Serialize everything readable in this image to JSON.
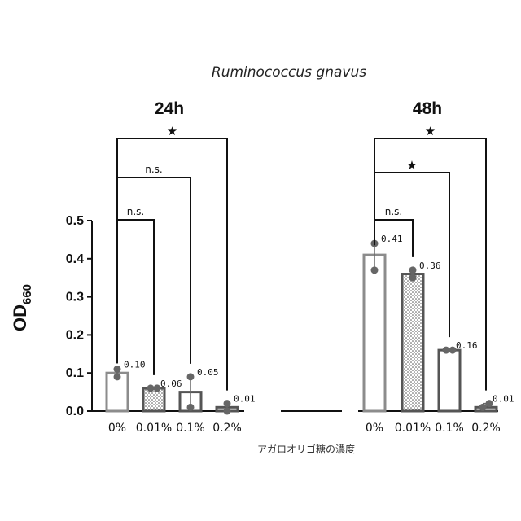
{
  "chart_data": {
    "type": "bar",
    "title": "Ruminococcus gnavus",
    "ylabel": "OD",
    "ylabel_sub": "660",
    "xlabel": "アガロオリゴ糖の濃度",
    "ylim": [
      0,
      0.5
    ],
    "yticks": [
      "0.0",
      "0.1",
      "0.2",
      "0.3",
      "0.4",
      "0.5"
    ],
    "grid": false,
    "groups": [
      {
        "label": "24h",
        "categories": [
          "0%",
          "0.01%",
          "0.1%",
          "0.2%"
        ],
        "values": [
          0.1,
          0.06,
          0.05,
          0.01
        ],
        "value_labels": [
          "0.10",
          "0.06",
          "0.05",
          "0.01"
        ],
        "points": [
          [
            0.09,
            0.11
          ],
          [
            0.06,
            0.06
          ],
          [
            0.01,
            0.09
          ],
          [
            0.0,
            0.02
          ]
        ],
        "significance": [
          {
            "from": 0,
            "to": 1,
            "label": "n.s."
          },
          {
            "from": 0,
            "to": 2,
            "label": "n.s."
          },
          {
            "from": 0,
            "to": 3,
            "label": "★"
          }
        ]
      },
      {
        "label": "48h",
        "categories": [
          "0%",
          "0.01%",
          "0.1%",
          "0.2%"
        ],
        "values": [
          0.41,
          0.36,
          0.16,
          0.01
        ],
        "value_labels": [
          "0.41",
          "0.36",
          "0.16",
          "0.01"
        ],
        "points": [
          [
            0.37,
            0.44
          ],
          [
            0.35,
            0.37
          ],
          [
            0.16,
            0.16
          ],
          [
            0.01,
            0.02
          ]
        ],
        "significance": [
          {
            "from": 0,
            "to": 1,
            "label": "n.s."
          },
          {
            "from": 0,
            "to": 2,
            "label": "★"
          },
          {
            "from": 0,
            "to": 3,
            "label": "★"
          }
        ]
      }
    ],
    "bar_styles": [
      "open-light",
      "dotted",
      "open-dark",
      "open-dark"
    ],
    "colors": {
      "light": "#8c8c8c",
      "dark": "#555555",
      "axis": "#111111",
      "point": "#666666"
    }
  }
}
